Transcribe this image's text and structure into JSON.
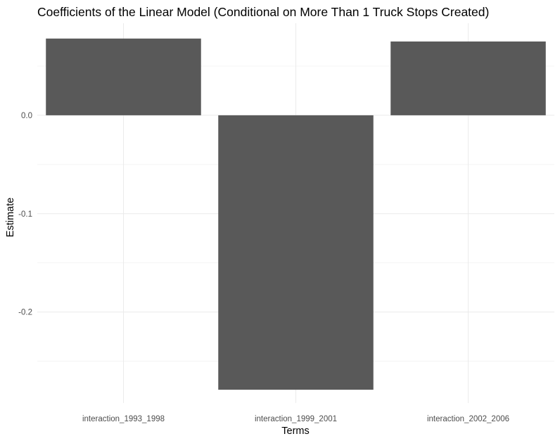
{
  "chart_data": {
    "type": "bar",
    "title": "Coefficients of the Linear Model (Conditional on More Than 1 Truck Stops Created)",
    "xlabel": "Terms",
    "ylabel": "Estimate",
    "categories": [
      "interaction_1993_1998",
      "interaction_1999_2001",
      "interaction_2002_2006"
    ],
    "values": [
      0.078,
      -0.279,
      0.075
    ],
    "yticks": [
      0.0,
      -0.1,
      -0.2
    ],
    "ytick_labels": [
      "0.0",
      "-0.1",
      "-0.2"
    ],
    "ylim": [
      -0.2925,
      0.0936
    ],
    "grid": true,
    "bar_color": "#595959"
  }
}
